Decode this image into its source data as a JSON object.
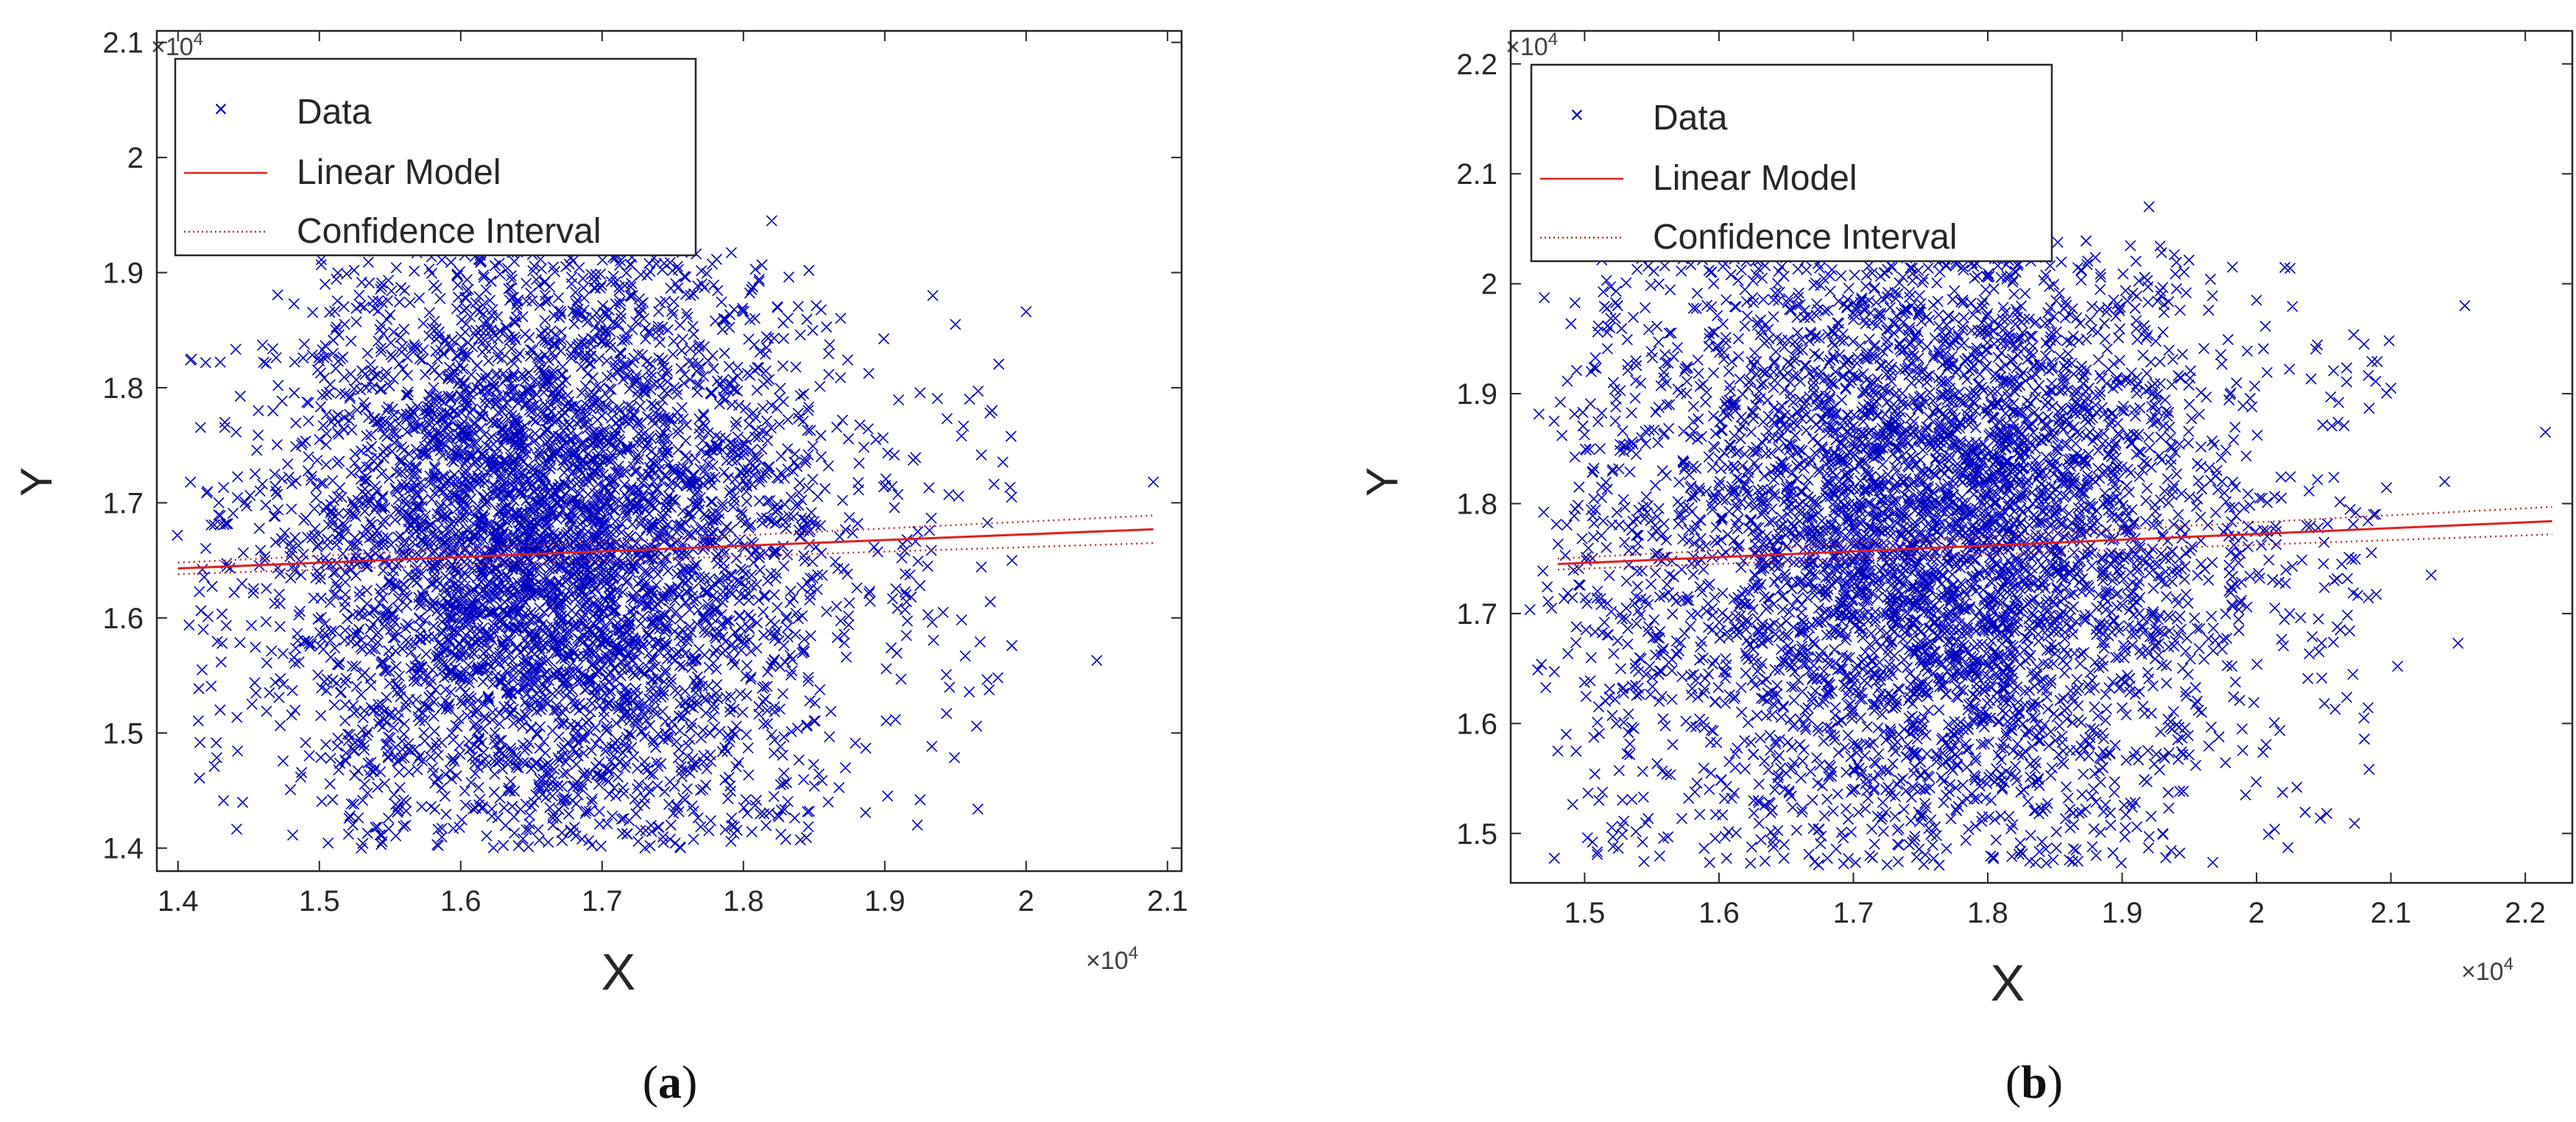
{
  "colors": {
    "data": "#0000c0",
    "model": "#e02020",
    "ci": "#b03030",
    "axis": "#262626",
    "legend_border": "#262626"
  },
  "legend": {
    "items": [
      {
        "key": "data",
        "label": "Data"
      },
      {
        "key": "model",
        "label": "Linear Model"
      },
      {
        "key": "ci",
        "label": "Confidence Interval"
      }
    ]
  },
  "chart_data": [
    {
      "panel": "a",
      "panel_label_open": "(",
      "panel_label_letter": "a",
      "panel_label_close": ")",
      "type": "scatter",
      "xlabel": "X",
      "ylabel": "Y",
      "x_multiplier": "×10",
      "y_multiplier": "×10",
      "exponent": "4",
      "xlim": [
        1.385,
        2.11
      ],
      "ylim": [
        1.38,
        2.11
      ],
      "xticks": [
        1.4,
        1.5,
        1.6,
        1.7,
        1.8,
        1.9,
        2.0,
        2.1
      ],
      "xtick_labels": [
        "1.4",
        "1.5",
        "1.6",
        "1.7",
        "1.8",
        "1.9",
        "2",
        "2.1"
      ],
      "yticks": [
        1.4,
        1.5,
        1.6,
        1.7,
        1.8,
        1.9,
        2.0,
        2.1
      ],
      "ytick_labels": [
        "1.4",
        "1.5",
        "1.6",
        "1.7",
        "1.8",
        "1.9",
        "2",
        "2.1"
      ],
      "grid": false,
      "legend_position": "top-left",
      "scatter_core": {
        "x_range": [
          1.5,
          1.85
        ],
        "y_range": [
          1.4,
          1.92
        ],
        "center": [
          1.66,
          1.66
        ]
      },
      "scatter_outliers": [
        [
          1.82,
          1.945
        ],
        [
          2.0,
          1.866
        ],
        [
          2.09,
          1.718
        ],
        [
          2.05,
          1.563
        ],
        [
          1.98,
          1.548
        ],
        [
          1.965,
          1.506
        ],
        [
          1.925,
          1.442
        ],
        [
          1.923,
          1.42
        ],
        [
          1.86,
          1.44
        ],
        [
          1.95,
          1.855
        ],
        [
          1.96,
          1.79
        ],
        [
          1.99,
          1.65
        ]
      ],
      "linear_model": {
        "x": [
          1.4,
          2.09
        ],
        "y": [
          1.643,
          1.677
        ]
      },
      "ci_upper": {
        "x": [
          1.4,
          2.09
        ],
        "y": [
          1.648,
          1.689
        ]
      },
      "ci_lower": {
        "x": [
          1.4,
          2.09
        ],
        "y": [
          1.638,
          1.665
        ]
      },
      "n_points": 5200
    },
    {
      "panel": "b",
      "panel_label_open": "(",
      "panel_label_letter": "b",
      "panel_label_close": ")",
      "type": "scatter",
      "xlabel": "X",
      "ylabel": "Y",
      "x_multiplier": "×10",
      "y_multiplier": "×10",
      "exponent": "4",
      "xlim": [
        1.445,
        2.235
      ],
      "ylim": [
        1.455,
        2.23
      ],
      "xticks": [
        1.5,
        1.6,
        1.7,
        1.8,
        1.9,
        2.0,
        2.1,
        2.2
      ],
      "xtick_labels": [
        "1.5",
        "1.6",
        "1.7",
        "1.8",
        "1.9",
        "2",
        "2.1",
        "2.2"
      ],
      "yticks": [
        1.5,
        1.6,
        1.7,
        1.8,
        1.9,
        2.0,
        2.1,
        2.2
      ],
      "ytick_labels": [
        "1.5",
        "1.6",
        "1.7",
        "1.8",
        "1.9",
        "2",
        "2.1",
        "2.2"
      ],
      "grid": false,
      "legend_position": "top-left",
      "scatter_core": {
        "x_range": [
          1.5,
          1.95
        ],
        "y_range": [
          1.47,
          2.04
        ],
        "center": [
          1.76,
          1.775
        ]
      },
      "scatter_outliers": [
        [
          2.155,
          1.98
        ],
        [
          2.215,
          1.865
        ],
        [
          2.1,
          1.905
        ],
        [
          2.08,
          1.945
        ],
        [
          2.15,
          1.673
        ],
        [
          2.105,
          1.652
        ],
        [
          2.08,
          1.605
        ],
        [
          2.06,
          1.688
        ],
        [
          2.03,
          1.542
        ],
        [
          1.92,
          2.07
        ],
        [
          2.0,
          1.985
        ],
        [
          1.48,
          1.575
        ],
        [
          2.13,
          1.735
        ],
        [
          2.14,
          1.82
        ]
      ],
      "linear_model": {
        "x": [
          1.48,
          2.22
        ],
        "y": [
          1.745,
          1.784
        ]
      },
      "ci_upper": {
        "x": [
          1.48,
          2.22
        ],
        "y": [
          1.75,
          1.797
        ]
      },
      "ci_lower": {
        "x": [
          1.48,
          2.22
        ],
        "y": [
          1.74,
          1.772
        ]
      },
      "n_points": 5200
    }
  ]
}
